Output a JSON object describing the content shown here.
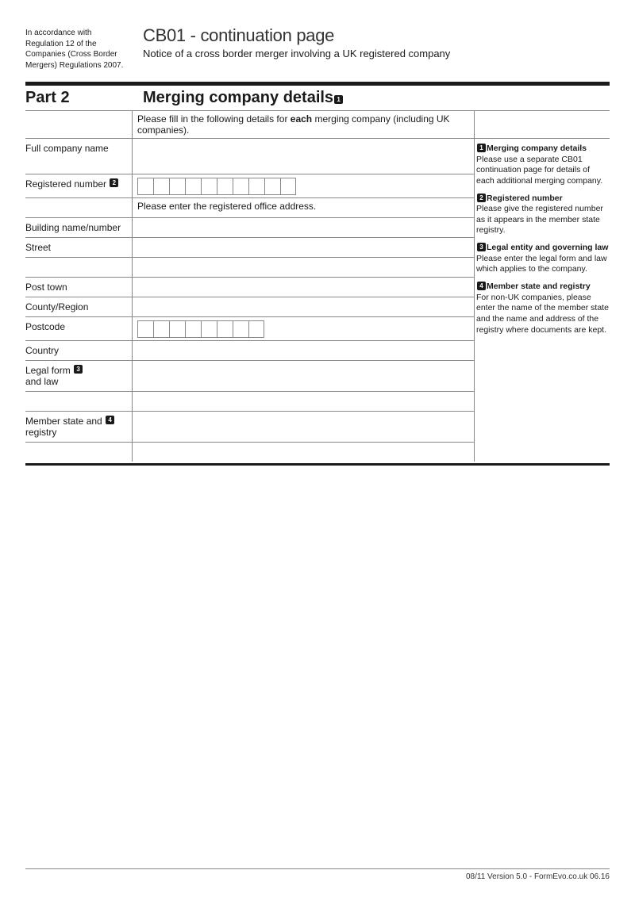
{
  "header": {
    "regulation_note": "In accordance with Regulation 12 of the Companies (Cross Border Mergers) Regulations 2007.",
    "title": "CB01 - continuation page",
    "subtitle": "Notice of a cross border merger involving a UK registered company"
  },
  "section": {
    "label": "Part 2",
    "title": "Merging company details"
  },
  "instructions": {
    "main_pre": "Please fill in the following details for ",
    "main_bold": "each",
    "main_post": " merging company (including UK companies).",
    "reg_office": "Please enter the registered office address."
  },
  "fields": {
    "full_company_name": "Full company name",
    "registered_number": "Registered number",
    "building": "Building name/number",
    "street": "Street",
    "post_town": "Post town",
    "county": "County/Region",
    "postcode": "Postcode",
    "country": "Country",
    "legal_form": "Legal form and law",
    "member_state": "Member state and registry"
  },
  "box_counts": {
    "registered_number": 10,
    "postcode": 8
  },
  "sidebar": {
    "n1": {
      "title": "Merging company details",
      "body": "Please use a separate CB01 continuation page for details of each additional merging company."
    },
    "n2": {
      "title": "Registered number",
      "body": "Please give the registered number as it appears in the member state registry."
    },
    "n3": {
      "title": "Legal entity and governing law",
      "body": "Please enter the legal form and law which applies to the company."
    },
    "n4": {
      "title": "Member state and registry",
      "body": "For non-UK companies, please enter the name of the member state and the name and address of the registry where documents are kept."
    }
  },
  "footer": "08/11 Version 5.0 - FormEvo.co.uk 06.16",
  "colors": {
    "text": "#1a1a1a",
    "border": "#888888",
    "background": "#ffffff"
  }
}
